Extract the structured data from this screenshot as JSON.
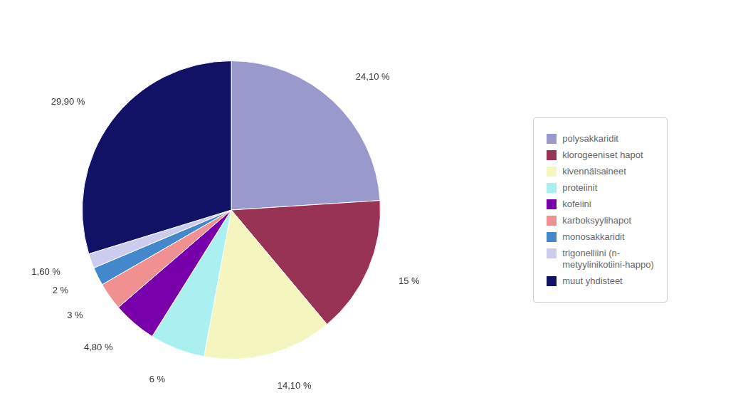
{
  "chart_data": {
    "type": "pie",
    "categories": [
      "polysakkaridit",
      "klorogeeniset hapot",
      "kivennäisaineet",
      "proteiinit",
      "kofeiini",
      "karboksyylihapot",
      "monosakkaridit",
      "trigonelliini (n-\nmetyylinikotiini-happo)",
      "muut yhdisteet"
    ],
    "values": [
      24.1,
      15,
      14.1,
      6,
      4.8,
      3,
      2,
      1.6,
      29.9
    ],
    "value_labels": [
      "24,10 %",
      "15 %",
      "14,10 %",
      "6 %",
      "4,80 %",
      "3 %",
      "2 %",
      "1,60 %",
      "29,90 %"
    ],
    "colors": [
      "#9999cc",
      "#993355",
      "#f5f5c0",
      "#aaf0f0",
      "#7700aa",
      "#f09090",
      "#4488cc",
      "#ccccee",
      "#111166"
    ],
    "data_labels": true,
    "legend": "right"
  }
}
